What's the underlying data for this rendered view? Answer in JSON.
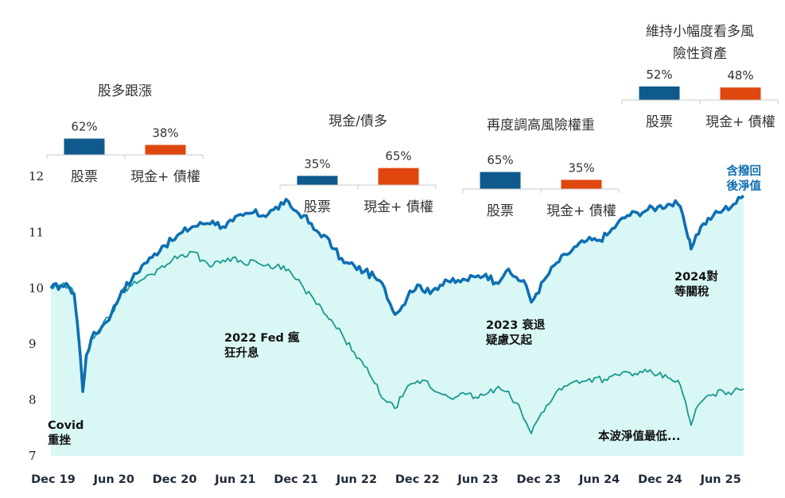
{
  "chart_data": {
    "type": "line",
    "title": "",
    "xlabel": "",
    "ylabel": "",
    "ylim": [
      7,
      12
    ],
    "y_ticks": [
      "7",
      "8",
      "9",
      "10",
      "11",
      "12"
    ],
    "x_ticks": [
      "Dec 19",
      "Jun 20",
      "Dec 20",
      "Jun 21",
      "Dec 21",
      "Jun 22",
      "Dec 22",
      "Jun 23",
      "Dec 23",
      "Jun 24",
      "Dec 24",
      "Jun 25"
    ],
    "x_tick_months": [
      0,
      6,
      12,
      18,
      24,
      30,
      36,
      42,
      48,
      54,
      60,
      66
    ],
    "x_range_months": [
      0,
      68.5
    ],
    "series": [
      {
        "name": "含撥回後淨值",
        "color": "#0f6fb2",
        "fill": "#d9f7f5",
        "points": [
          [
            0,
            10.0
          ],
          [
            1.0,
            10.05
          ],
          [
            1.8,
            10.02
          ],
          [
            2.3,
            9.9
          ],
          [
            2.6,
            9.4
          ],
          [
            2.9,
            8.8
          ],
          [
            3.15,
            8.15
          ],
          [
            3.5,
            8.8
          ],
          [
            4.0,
            9.1
          ],
          [
            5.0,
            9.3
          ],
          [
            6.0,
            9.55
          ],
          [
            7.0,
            9.95
          ],
          [
            8.0,
            10.15
          ],
          [
            9.0,
            10.4
          ],
          [
            10.0,
            10.55
          ],
          [
            11.0,
            10.75
          ],
          [
            12.0,
            10.85
          ],
          [
            13.0,
            11.0
          ],
          [
            14.0,
            11.1
          ],
          [
            15.0,
            11.15
          ],
          [
            16.0,
            11.2
          ],
          [
            17.0,
            11.1
          ],
          [
            18.0,
            11.2
          ],
          [
            19.0,
            11.3
          ],
          [
            20.0,
            11.35
          ],
          [
            21.0,
            11.3
          ],
          [
            22.0,
            11.4
          ],
          [
            23.0,
            11.5
          ],
          [
            23.5,
            11.55
          ],
          [
            24.0,
            11.4
          ],
          [
            25.0,
            11.3
          ],
          [
            26.0,
            11.05
          ],
          [
            27.0,
            10.95
          ],
          [
            28.0,
            10.7
          ],
          [
            29.0,
            10.45
          ],
          [
            30.0,
            10.4
          ],
          [
            31.0,
            10.3
          ],
          [
            32.0,
            10.2
          ],
          [
            33.0,
            10.0
          ],
          [
            33.8,
            9.6
          ],
          [
            34.5,
            9.6
          ],
          [
            35.5,
            9.95
          ],
          [
            36.5,
            10.05
          ],
          [
            37.5,
            9.9
          ],
          [
            38.0,
            10.0
          ],
          [
            39.0,
            10.15
          ],
          [
            40.0,
            10.1
          ],
          [
            41.0,
            10.15
          ],
          [
            42.0,
            10.2
          ],
          [
            43.0,
            10.25
          ],
          [
            44.0,
            10.1
          ],
          [
            45.0,
            10.3
          ],
          [
            46.0,
            10.2
          ],
          [
            47.0,
            10.05
          ],
          [
            47.5,
            9.75
          ],
          [
            48.0,
            9.9
          ],
          [
            49.0,
            10.2
          ],
          [
            50.0,
            10.45
          ],
          [
            51.0,
            10.6
          ],
          [
            52.0,
            10.75
          ],
          [
            53.0,
            10.85
          ],
          [
            54.0,
            10.85
          ],
          [
            55.0,
            10.95
          ],
          [
            56.0,
            11.15
          ],
          [
            57.0,
            11.3
          ],
          [
            58.0,
            11.35
          ],
          [
            59.0,
            11.4
          ],
          [
            60.0,
            11.45
          ],
          [
            61.0,
            11.5
          ],
          [
            62.0,
            11.5
          ],
          [
            62.5,
            11.3
          ],
          [
            63.0,
            10.9
          ],
          [
            63.3,
            10.7
          ],
          [
            63.8,
            10.95
          ],
          [
            64.5,
            11.15
          ],
          [
            65.5,
            11.3
          ],
          [
            66.5,
            11.4
          ],
          [
            67.5,
            11.5
          ],
          [
            68.5,
            11.65
          ]
        ]
      },
      {
        "name": "本波淨值最低",
        "color": "#18998f",
        "points": [
          [
            0,
            10.0
          ],
          [
            1.0,
            10.05
          ],
          [
            1.8,
            10.02
          ],
          [
            2.3,
            9.9
          ],
          [
            2.6,
            9.4
          ],
          [
            2.9,
            8.8
          ],
          [
            3.15,
            8.15
          ],
          [
            3.5,
            8.8
          ],
          [
            4.0,
            9.1
          ],
          [
            5.0,
            9.3
          ],
          [
            6.0,
            9.55
          ],
          [
            7.0,
            9.95
          ],
          [
            8.0,
            10.05
          ],
          [
            9.0,
            10.15
          ],
          [
            10.0,
            10.25
          ],
          [
            11.0,
            10.4
          ],
          [
            12.0,
            10.5
          ],
          [
            13.0,
            10.6
          ],
          [
            14.0,
            10.65
          ],
          [
            15.0,
            10.5
          ],
          [
            16.0,
            10.4
          ],
          [
            17.0,
            10.5
          ],
          [
            18.0,
            10.55
          ],
          [
            19.0,
            10.45
          ],
          [
            20.0,
            10.5
          ],
          [
            21.0,
            10.4
          ],
          [
            22.0,
            10.35
          ],
          [
            23.0,
            10.4
          ],
          [
            24.0,
            10.2
          ],
          [
            25.0,
            10.0
          ],
          [
            26.0,
            9.8
          ],
          [
            27.0,
            9.55
          ],
          [
            28.0,
            9.35
          ],
          [
            29.0,
            9.1
          ],
          [
            30.0,
            8.85
          ],
          [
            31.0,
            8.6
          ],
          [
            32.0,
            8.3
          ],
          [
            33.0,
            8.0
          ],
          [
            34.0,
            7.85
          ],
          [
            35.0,
            8.15
          ],
          [
            36.0,
            8.3
          ],
          [
            37.0,
            8.35
          ],
          [
            38.0,
            8.15
          ],
          [
            39.0,
            8.1
          ],
          [
            40.0,
            8.05
          ],
          [
            41.0,
            8.1
          ],
          [
            42.0,
            8.05
          ],
          [
            43.0,
            8.1
          ],
          [
            44.0,
            8.2
          ],
          [
            45.0,
            8.15
          ],
          [
            46.0,
            7.95
          ],
          [
            47.0,
            7.6
          ],
          [
            47.5,
            7.4
          ],
          [
            48.0,
            7.6
          ],
          [
            49.0,
            7.9
          ],
          [
            50.0,
            8.15
          ],
          [
            51.0,
            8.25
          ],
          [
            52.0,
            8.35
          ],
          [
            53.0,
            8.35
          ],
          [
            54.0,
            8.4
          ],
          [
            55.0,
            8.35
          ],
          [
            56.0,
            8.45
          ],
          [
            57.0,
            8.5
          ],
          [
            58.0,
            8.45
          ],
          [
            59.0,
            8.5
          ],
          [
            60.0,
            8.45
          ],
          [
            61.0,
            8.4
          ],
          [
            62.0,
            8.35
          ],
          [
            62.5,
            8.1
          ],
          [
            63.0,
            7.75
          ],
          [
            63.3,
            7.55
          ],
          [
            63.8,
            7.85
          ],
          [
            64.5,
            8.0
          ],
          [
            65.5,
            8.1
          ],
          [
            66.5,
            8.15
          ],
          [
            67.5,
            8.15
          ],
          [
            68.5,
            8.2
          ]
        ]
      }
    ],
    "annotations": [
      {
        "lines": [
          "Covid",
          "重挫"
        ]
      },
      {
        "lines": [
          "2022 Fed 瘋",
          "狂升息"
        ]
      },
      {
        "lines": [
          "2023 衰退",
          "疑慮又起"
        ]
      },
      {
        "lines": [
          "2024對",
          "等關稅"
        ]
      },
      {
        "lines": [
          "本波淨值最低..."
        ]
      },
      {
        "lines": [
          "含撥回",
          "後淨值"
        ]
      }
    ],
    "allocation_panels": [
      {
        "title": [
          "股多跟漲"
        ],
        "stock_pct": 62,
        "stock_label": "62%",
        "cash_pct": 38,
        "cash_label": "38%"
      },
      {
        "title": [
          "現金/債多"
        ],
        "stock_pct": 35,
        "stock_label": "35%",
        "cash_pct": 65,
        "cash_label": "65%"
      },
      {
        "title": [
          "再度調高風險權重"
        ],
        "stock_pct": 65,
        "stock_label": "65%",
        "cash_pct": 35,
        "cash_label": "35%"
      },
      {
        "title": [
          "維持小幅度看多風",
          "險性資產"
        ],
        "stock_pct": 52,
        "stock_label": "52%",
        "cash_pct": 48,
        "cash_label": "48%"
      }
    ],
    "allocation_categories": {
      "stock": "股票",
      "cash": "現金+ 債權"
    },
    "colors": {
      "stock": "#0f5a8c",
      "cash": "#e0470e",
      "nav_line": "#0f6fb2",
      "low_line": "#18998f",
      "area": "#d9f7f5"
    }
  }
}
